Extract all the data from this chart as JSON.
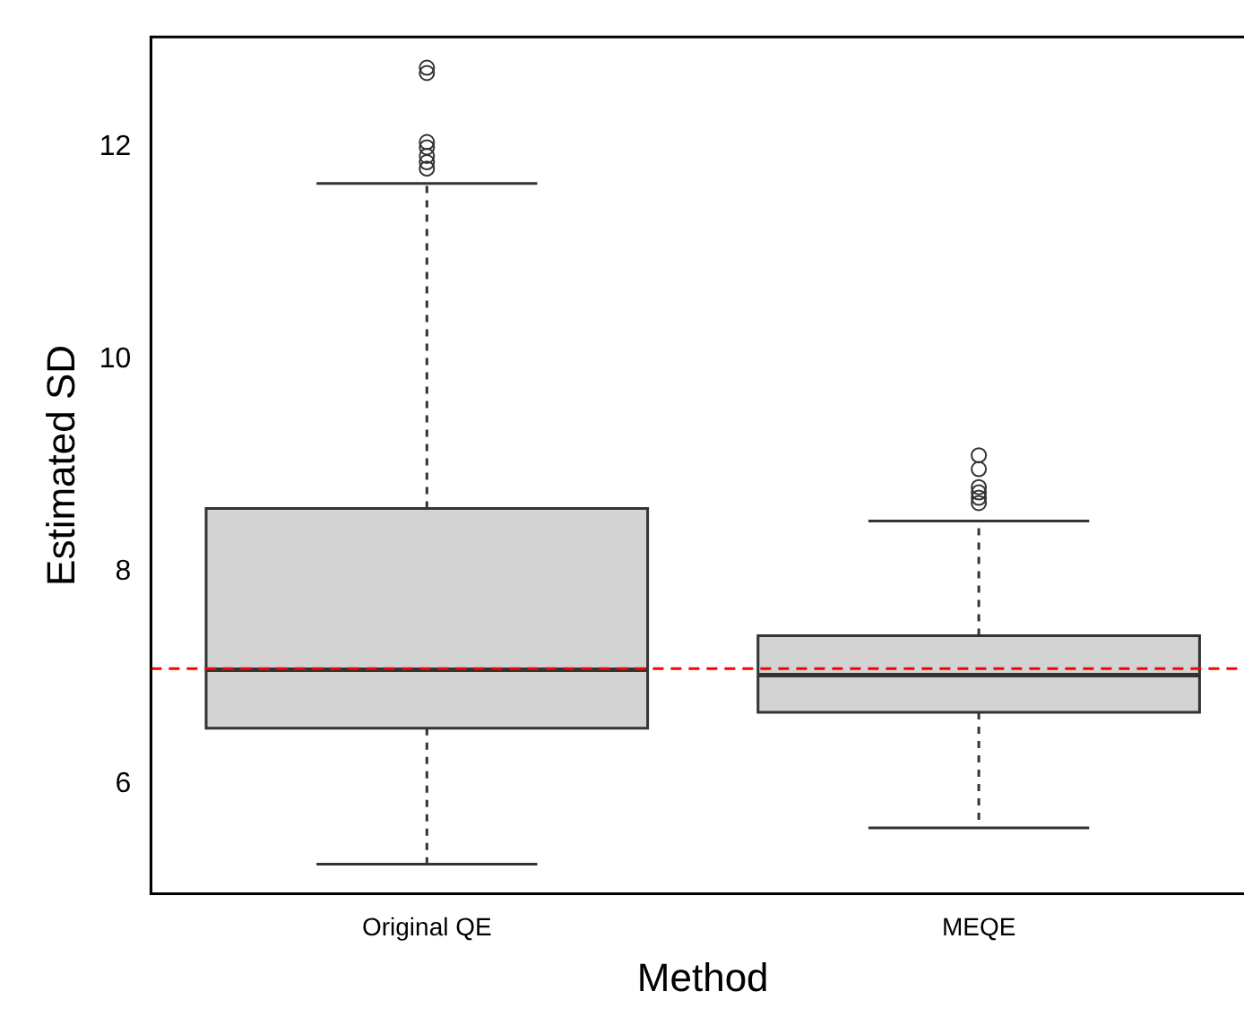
{
  "chart_data": {
    "type": "box",
    "xlabel": "Method",
    "ylabel": "Estimated SD",
    "categories": [
      "Original QE",
      "MEQE"
    ],
    "color": "#d3d3d3",
    "boxes": [
      {
        "low": 5.25,
        "q1": 6.53,
        "median": 7.08,
        "q3": 8.6,
        "high": 11.66,
        "outliers": [
          12.75,
          12.7,
          12.05,
          12.0,
          11.92,
          11.86,
          11.8
        ]
      },
      {
        "low": 5.59,
        "q1": 6.68,
        "median": 7.03,
        "q3": 7.4,
        "high": 8.48,
        "outliers": [
          9.1,
          8.97,
          8.8,
          8.75,
          8.7,
          8.65
        ]
      }
    ],
    "ylim": [
      4.97,
      13.04
    ],
    "yticks": [
      6,
      8,
      10,
      12
    ],
    "grid": false,
    "legend": false,
    "ref_lines": [
      {
        "axis": "y",
        "value": 7.09,
        "color": "#ff0000",
        "line_style": "dashed"
      }
    ]
  }
}
